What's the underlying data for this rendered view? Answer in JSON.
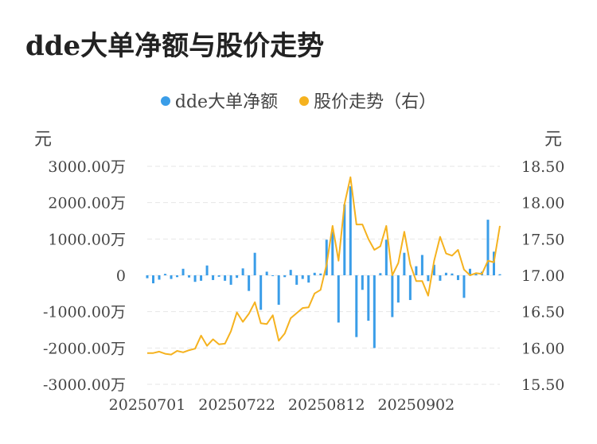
{
  "title": "dde大单净额与股价走势",
  "chart_data": {
    "type": "bar+line",
    "left_unit": "元",
    "right_unit": "元",
    "legend": [
      {
        "name": "dde大单净额",
        "color": "#3a9de8"
      },
      {
        "name": "股价走势（右）",
        "color": "#f5b21f"
      }
    ],
    "left_axis": {
      "min": -3000,
      "max": 3000,
      "ticks": [
        "3000.00万",
        "2000.00万",
        "1000.00万",
        "0",
        "-1000.00万",
        "-2000.00万",
        "-3000.00万"
      ]
    },
    "right_axis": {
      "min": 15.5,
      "max": 18.5,
      "ticks": [
        "18.50",
        "18.00",
        "17.50",
        "17.00",
        "16.50",
        "16.00",
        "15.50"
      ]
    },
    "x_tick_labels": [
      "20250701",
      "20250722",
      "20250812",
      "20250902"
    ],
    "x_tick_indices": [
      0,
      15,
      30,
      45
    ],
    "dde_net_wan": [
      -80,
      -220,
      -120,
      40,
      -100,
      -50,
      180,
      -60,
      -180,
      -150,
      270,
      -130,
      -40,
      -150,
      -260,
      -70,
      190,
      -430,
      620,
      -950,
      100,
      -20,
      -810,
      -50,
      150,
      -260,
      -100,
      -200,
      70,
      50,
      980,
      1200,
      -1300,
      1950,
      2450,
      -1700,
      -400,
      -1250,
      -2000,
      60,
      980,
      -1150,
      -750,
      620,
      -680,
      250,
      560,
      -160,
      290,
      -150,
      70,
      50,
      -130,
      -620,
      180,
      50,
      100,
      1530,
      650,
      30
    ],
    "price": [
      15.93,
      15.93,
      15.95,
      15.92,
      15.91,
      15.96,
      15.94,
      15.97,
      15.99,
      16.17,
      16.03,
      16.12,
      16.05,
      16.06,
      16.23,
      16.49,
      16.36,
      16.47,
      16.63,
      16.34,
      16.33,
      16.45,
      16.1,
      16.2,
      16.41,
      16.48,
      16.55,
      16.56,
      16.75,
      16.8,
      17.15,
      17.68,
      17.2,
      17.98,
      18.35,
      17.7,
      17.7,
      17.5,
      17.35,
      17.4,
      17.68,
      17.0,
      17.17,
      17.6,
      17.15,
      16.92,
      16.92,
      16.72,
      17.2,
      17.53,
      17.3,
      17.27,
      17.35,
      17.08,
      17.0,
      17.03,
      17.02,
      17.2,
      17.18,
      17.68
    ]
  }
}
